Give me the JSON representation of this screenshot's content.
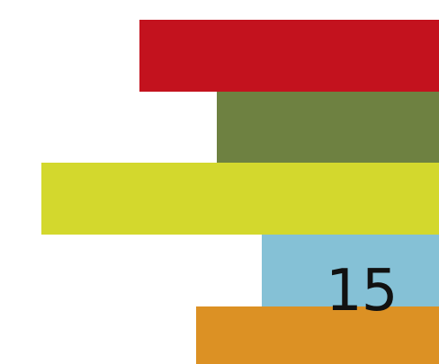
{
  "page_number": "15",
  "colors": {
    "red": "#c3121e",
    "olive": "#6e8141",
    "lime": "#d3d82d",
    "blue": "#85c1d6",
    "orange": "#dc9124",
    "text": "#111111"
  }
}
